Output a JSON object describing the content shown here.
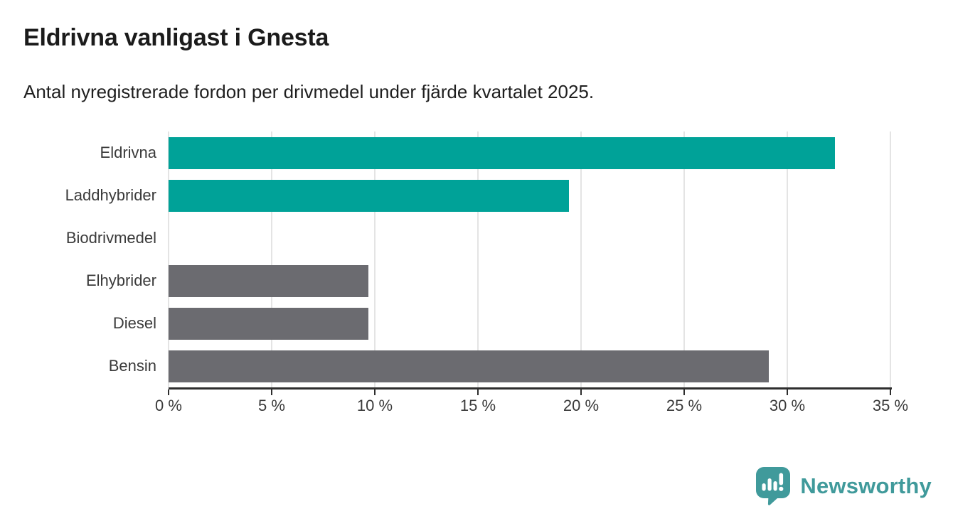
{
  "title": "Eldrivna vanligast i Gnesta",
  "subtitle": "Antal nyregistrerade fordon per drivmedel under fjärde kvartalet 2025.",
  "chart_data": {
    "type": "bar",
    "orientation": "horizontal",
    "title": "Eldrivna vanligast i Gnesta",
    "subtitle": "Antal nyregistrerade fordon per drivmedel under fjärde kvartalet 2025.",
    "categories": [
      "Eldrivna",
      "Laddhybrider",
      "Biodrivmedel",
      "Elhybrider",
      "Diesel",
      "Bensin"
    ],
    "values": [
      32.3,
      19.4,
      0,
      9.7,
      9.7,
      29.1
    ],
    "unit": "%",
    "bar_colors": [
      "#00a298",
      "#00a298",
      "#6b6b70",
      "#6b6b70",
      "#6b6b70",
      "#6b6b70"
    ],
    "xlim": [
      0,
      35
    ],
    "x_tick_values": [
      0,
      5,
      10,
      15,
      20,
      25,
      30,
      35
    ],
    "x_tick_labels": [
      "0 %",
      "5 %",
      "10 %",
      "15 %",
      "20 %",
      "25 %",
      "30 %",
      "35 %"
    ],
    "xlabel": "",
    "ylabel": "",
    "grid": "vertical",
    "legend": "none"
  },
  "colors": {
    "accent_teal": "#00a298",
    "neutral_gray": "#6b6b70",
    "gridline": "#e4e4e4",
    "axis": "#2e2e2e",
    "brand_teal": "#409a9b"
  },
  "branding": {
    "logo_text": "Newsworthy",
    "logo_icon": "bar-chart-speech-bubble-icon"
  }
}
